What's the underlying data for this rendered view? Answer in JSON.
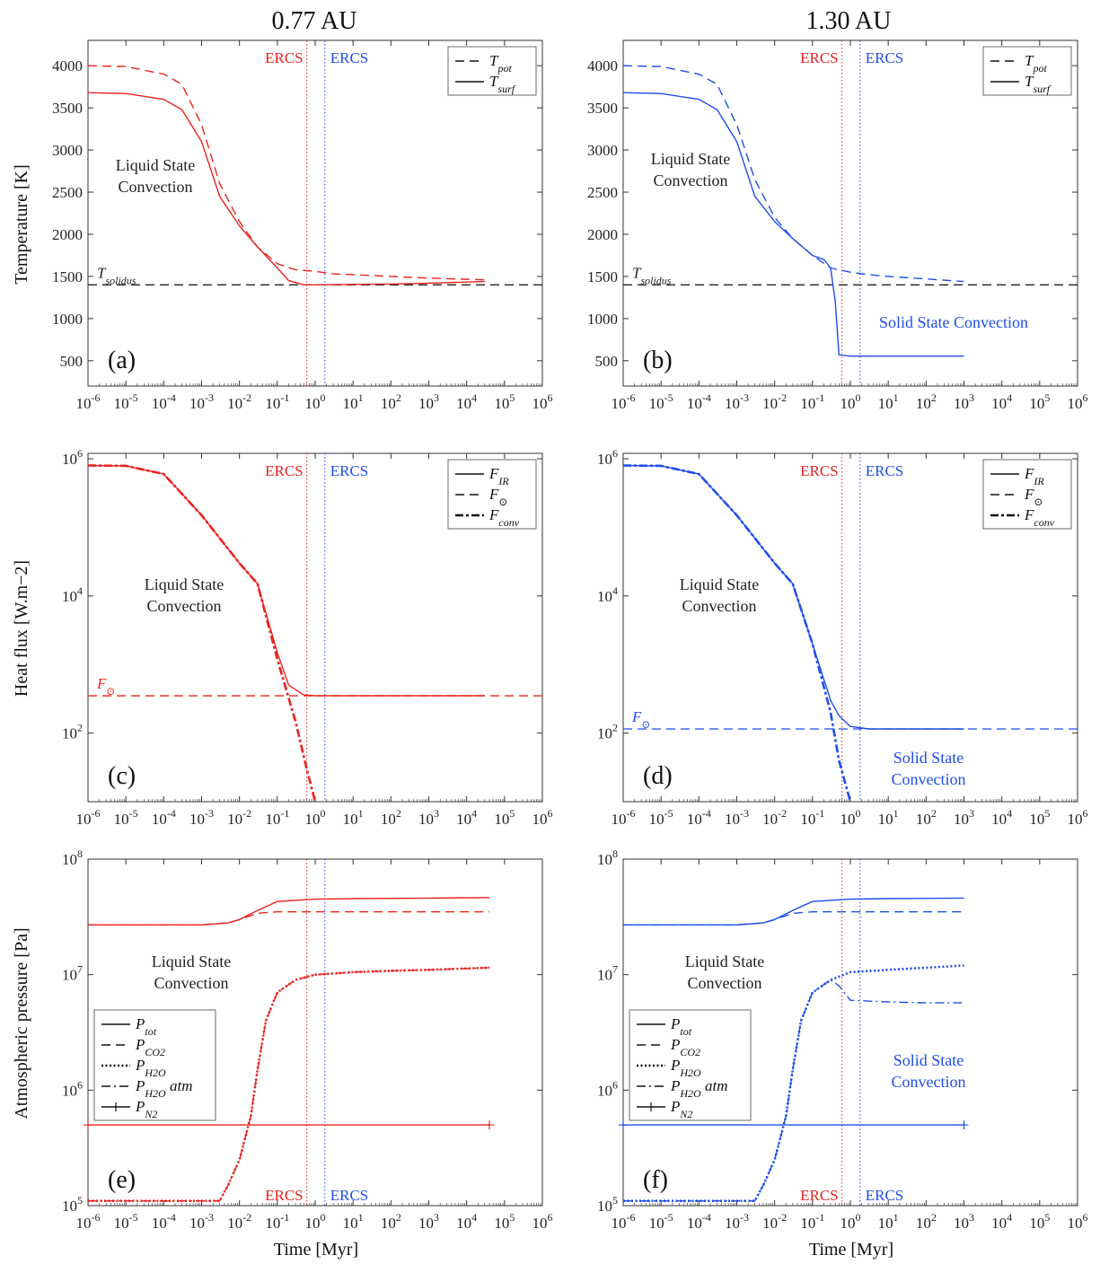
{
  "figure": {
    "col_titles": [
      "0.77 AU",
      "1.30 AU"
    ],
    "ylabels": {
      "temperature": "Temperature [K]",
      "heat_flux": "Heat flux [W.m−2]",
      "pressure": "Atmospheric pressure [Pa]"
    },
    "xlabel": "Time [Myr]",
    "colors": {
      "red": "#e8231f",
      "blue": "#1f4ee8",
      "black": "#222222"
    }
  },
  "chart_data": [
    {
      "id": "a",
      "panel_label": "(a)",
      "type": "line",
      "xscale": "log",
      "xlim": [
        1e-06,
        1000000.0
      ],
      "ylim": [
        200,
        4300
      ],
      "yticks": [
        500,
        1000,
        1500,
        2000,
        2500,
        3000,
        3500,
        4000
      ],
      "ytick_labels": [
        "500",
        "1000",
        "1500",
        "2000",
        "2500",
        "3000",
        "3500",
        "4000"
      ],
      "legend": {
        "placement": "top-right",
        "entries": [
          {
            "label": "T_pot",
            "style": "dashed"
          },
          {
            "label": "T_surf",
            "style": "solid"
          }
        ]
      },
      "vlines": [
        {
          "x": 0.6,
          "label": "ERCS",
          "color": "red"
        },
        {
          "x": 1.8,
          "label": "ERCS",
          "color": "blue"
        }
      ],
      "hlines": [
        {
          "y": 1400,
          "label": "T_solidus",
          "color": "black",
          "style": "dashed"
        }
      ],
      "annotations": [
        {
          "text": "Liquid State\nConvection",
          "color": "black"
        }
      ],
      "series": [
        {
          "name": "T_pot",
          "style": "dashed",
          "color": "red",
          "x": [
            1e-06,
            1e-05,
            0.0001,
            0.0003,
            0.001,
            0.003,
            0.01,
            0.03,
            0.1,
            0.3,
            1,
            3,
            10,
            100,
            1000,
            30000.0
          ],
          "y": [
            4000,
            3990,
            3900,
            3780,
            3300,
            2600,
            2150,
            1850,
            1650,
            1580,
            1560,
            1530,
            1520,
            1500,
            1480,
            1460
          ]
        },
        {
          "name": "T_surf",
          "style": "solid",
          "color": "red",
          "x": [
            1e-06,
            1e-05,
            0.0001,
            0.0003,
            0.001,
            0.003,
            0.01,
            0.03,
            0.1,
            0.2,
            0.5,
            1,
            10,
            100,
            1000,
            30000.0
          ],
          "y": [
            3680,
            3670,
            3600,
            3480,
            3100,
            2450,
            2100,
            1850,
            1600,
            1450,
            1400,
            1400,
            1405,
            1410,
            1420,
            1440
          ]
        }
      ]
    },
    {
      "id": "b",
      "panel_label": "(b)",
      "type": "line",
      "xscale": "log",
      "xlim": [
        1e-06,
        1000000.0
      ],
      "ylim": [
        200,
        4300
      ],
      "yticks": [
        500,
        1000,
        1500,
        2000,
        2500,
        3000,
        3500,
        4000
      ],
      "ytick_labels": [
        "500",
        "1000",
        "1500",
        "2000",
        "2500",
        "3000",
        "3500",
        "4000"
      ],
      "legend": {
        "placement": "top-right",
        "entries": [
          {
            "label": "T_pot",
            "style": "dashed"
          },
          {
            "label": "T_surf",
            "style": "solid"
          }
        ]
      },
      "vlines": [
        {
          "x": 0.6,
          "label": "ERCS",
          "color": "red"
        },
        {
          "x": 1.8,
          "label": "ERCS",
          "color": "blue"
        }
      ],
      "hlines": [
        {
          "y": 1400,
          "label": "T_solidus",
          "color": "black",
          "style": "dashed"
        }
      ],
      "annotations": [
        {
          "text": "Liquid State\nConvection",
          "color": "black"
        },
        {
          "text": "Solid State Convection",
          "color": "blue"
        }
      ],
      "series": [
        {
          "name": "T_pot",
          "style": "dashed",
          "color": "blue",
          "x": [
            1e-06,
            1e-05,
            0.0001,
            0.0003,
            0.001,
            0.003,
            0.01,
            0.03,
            0.1,
            0.3,
            1,
            3,
            10,
            100,
            1000
          ],
          "y": [
            4000,
            3990,
            3900,
            3780,
            3300,
            2650,
            2200,
            1950,
            1750,
            1600,
            1550,
            1520,
            1500,
            1470,
            1440
          ]
        },
        {
          "name": "T_surf",
          "style": "solid",
          "color": "blue",
          "x": [
            1e-06,
            1e-05,
            0.0001,
            0.0003,
            0.001,
            0.003,
            0.01,
            0.03,
            0.1,
            0.2,
            0.3,
            0.4,
            0.5,
            1,
            10,
            100,
            1000
          ],
          "y": [
            3680,
            3670,
            3600,
            3480,
            3100,
            2450,
            2150,
            1950,
            1750,
            1700,
            1600,
            1200,
            570,
            555,
            555,
            555,
            555
          ]
        }
      ]
    },
    {
      "id": "c",
      "panel_label": "(c)",
      "type": "line",
      "xscale": "log",
      "yscale": "log",
      "xlim": [
        1e-06,
        1000000.0
      ],
      "ylim": [
        10,
        1200000.0
      ],
      "yticks": [
        100,
        10000,
        1000000
      ],
      "ytick_labels": [
        "10^2",
        "10^4",
        "10^6"
      ],
      "legend": {
        "placement": "top-right",
        "entries": [
          {
            "label": "F_IR",
            "style": "solid"
          },
          {
            "label": "F_⊙",
            "style": "dashed"
          },
          {
            "label": "F_conv",
            "style": "dashdot-thick"
          }
        ]
      },
      "vlines": [
        {
          "x": 0.6,
          "label": "ERCS",
          "color": "red"
        },
        {
          "x": 1.8,
          "label": "ERCS",
          "color": "blue"
        }
      ],
      "hlines": [
        {
          "y": 350,
          "label": "F_⊙",
          "color": "red",
          "style": "dashed"
        }
      ],
      "annotations": [
        {
          "text": "Liquid State\nConvection",
          "color": "black"
        }
      ],
      "series": [
        {
          "name": "F_IR",
          "style": "solid",
          "color": "red",
          "x": [
            1e-06,
            1e-05,
            0.0001,
            0.001,
            0.01,
            0.03,
            0.1,
            0.2,
            0.5,
            1,
            10,
            1000,
            30000.0
          ],
          "y": [
            800000,
            790000,
            600000,
            150000,
            30000,
            15000,
            1500,
            500,
            360,
            350,
            350,
            350,
            350
          ]
        },
        {
          "name": "F_conv",
          "style": "dashdot-thick",
          "color": "red",
          "x": [
            1e-06,
            1e-05,
            0.0001,
            0.001,
            0.01,
            0.03,
            0.1,
            0.3,
            0.6,
            1
          ],
          "y": [
            800000,
            790000,
            600000,
            150000,
            30000,
            15000,
            1200,
            150,
            30,
            10
          ]
        }
      ]
    },
    {
      "id": "d",
      "panel_label": "(d)",
      "type": "line",
      "xscale": "log",
      "yscale": "log",
      "xlim": [
        1e-06,
        1000000.0
      ],
      "ylim": [
        10,
        1200000.0
      ],
      "yticks": [
        100,
        10000,
        1000000
      ],
      "ytick_labels": [
        "10^2",
        "10^4",
        "10^6"
      ],
      "legend": {
        "placement": "top-right",
        "entries": [
          {
            "label": "F_IR",
            "style": "solid"
          },
          {
            "label": "F_⊙",
            "style": "dashed"
          },
          {
            "label": "F_conv",
            "style": "dashdot-thick"
          }
        ]
      },
      "vlines": [
        {
          "x": 0.6,
          "label": "ERCS",
          "color": "red"
        },
        {
          "x": 1.8,
          "label": "ERCS",
          "color": "blue"
        }
      ],
      "hlines": [
        {
          "y": 115,
          "label": "F_⊙",
          "color": "blue",
          "style": "dashed"
        }
      ],
      "annotations": [
        {
          "text": "Liquid State\nConvection",
          "color": "black"
        },
        {
          "text": "Solid State\nConvection",
          "color": "blue"
        }
      ],
      "series": [
        {
          "name": "F_IR",
          "style": "solid",
          "color": "blue",
          "x": [
            1e-06,
            1e-05,
            0.0001,
            0.001,
            0.01,
            0.03,
            0.1,
            0.3,
            0.5,
            1,
            3,
            10,
            1000
          ],
          "y": [
            800000,
            790000,
            600000,
            150000,
            30000,
            15000,
            2000,
            300,
            180,
            125,
            115,
            115,
            115
          ]
        },
        {
          "name": "F_conv",
          "style": "dashdot-thick",
          "color": "blue",
          "x": [
            1e-06,
            1e-05,
            0.0001,
            0.001,
            0.01,
            0.03,
            0.1,
            0.3,
            0.5,
            1
          ],
          "y": [
            800000,
            790000,
            600000,
            150000,
            30000,
            15000,
            2000,
            200,
            40,
            10
          ]
        }
      ]
    },
    {
      "id": "e",
      "panel_label": "(e)",
      "type": "line",
      "xscale": "log",
      "yscale": "log",
      "xlim": [
        1e-06,
        1000000.0
      ],
      "ylim": [
        100000.0,
        100000000.0
      ],
      "yticks": [
        100000,
        1000000,
        10000000,
        100000000
      ],
      "ytick_labels": [
        "10^5",
        "10^6",
        "10^7",
        "10^8"
      ],
      "legend": {
        "placement": "bottom-left",
        "entries": [
          {
            "label": "P_tot",
            "style": "solid"
          },
          {
            "label": "P_CO2",
            "style": "dashed"
          },
          {
            "label": "P_H2O",
            "style": "dotted"
          },
          {
            "label": "P_H2O atm",
            "style": "dashdot"
          },
          {
            "label": "P_N2",
            "style": "plus"
          }
        ]
      },
      "vlines": [
        {
          "x": 0.6,
          "label": "ERCS",
          "color": "red"
        },
        {
          "x": 1.8,
          "label": "ERCS",
          "color": "blue"
        }
      ],
      "annotations": [
        {
          "text": "Liquid State\nConvection",
          "color": "black"
        }
      ],
      "series": [
        {
          "name": "P_tot",
          "style": "solid",
          "color": "red",
          "x": [
            1e-06,
            0.0001,
            0.001,
            0.005,
            0.01,
            0.03,
            0.1,
            1,
            10,
            1000,
            40000.0
          ],
          "y": [
            27000000,
            27000000,
            27000000,
            28000000,
            30000000,
            36000000,
            43000000,
            45000000,
            45500000,
            46000000,
            46500000
          ]
        },
        {
          "name": "P_CO2",
          "style": "dashed",
          "color": "red",
          "x": [
            1e-06,
            0.0001,
            0.001,
            0.005,
            0.01,
            0.03,
            0.1,
            1,
            40000.0
          ],
          "y": [
            27000000,
            27000000,
            27000000,
            28000000,
            30000000,
            34000000,
            35000000,
            35000000,
            35000000
          ]
        },
        {
          "name": "P_H2O",
          "style": "dotted",
          "color": "red",
          "x": [
            1e-06,
            0.0001,
            0.003,
            0.005,
            0.01,
            0.02,
            0.03,
            0.05,
            0.1,
            0.3,
            1,
            10,
            100,
            1000,
            40000.0
          ],
          "y": [
            110000,
            110000,
            110000,
            150000,
            250000,
            600000,
            1500000,
            4000000,
            7000000,
            9000000,
            10000000,
            10500000,
            10800000,
            11000000,
            11500000
          ]
        },
        {
          "name": "P_H2O atm",
          "style": "dashdot",
          "color": "red",
          "x": [
            1e-06,
            0.0001,
            0.003,
            0.005,
            0.01,
            0.02,
            0.03,
            0.05,
            0.1,
            0.3,
            1,
            10,
            100,
            1000,
            40000.0
          ],
          "y": [
            110000,
            110000,
            110000,
            150000,
            250000,
            600000,
            1500000,
            4000000,
            7000000,
            9000000,
            10000000,
            10500000,
            10800000,
            11000000,
            11500000
          ]
        },
        {
          "name": "P_N2",
          "style": "plus",
          "color": "red",
          "x": [
            1e-06,
            40000.0
          ],
          "y": [
            500000,
            500000
          ]
        }
      ]
    },
    {
      "id": "f",
      "panel_label": "(f)",
      "type": "line",
      "xscale": "log",
      "yscale": "log",
      "xlim": [
        1e-06,
        1000000.0
      ],
      "ylim": [
        100000.0,
        100000000.0
      ],
      "yticks": [
        100000,
        1000000,
        10000000,
        100000000
      ],
      "ytick_labels": [
        "10^5",
        "10^6",
        "10^7",
        "10^8"
      ],
      "legend": {
        "placement": "bottom-left",
        "entries": [
          {
            "label": "P_tot",
            "style": "solid"
          },
          {
            "label": "P_CO2",
            "style": "dashed"
          },
          {
            "label": "P_H2O",
            "style": "dotted"
          },
          {
            "label": "P_H2O atm",
            "style": "dashdot"
          },
          {
            "label": "P_N2",
            "style": "plus"
          }
        ]
      },
      "vlines": [
        {
          "x": 0.6,
          "label": "ERCS",
          "color": "red"
        },
        {
          "x": 1.8,
          "label": "ERCS",
          "color": "blue"
        }
      ],
      "annotations": [
        {
          "text": "Liquid State\nConvection",
          "color": "black"
        },
        {
          "text": "Solid State\nConvection",
          "color": "blue"
        }
      ],
      "series": [
        {
          "name": "P_tot",
          "style": "solid",
          "color": "blue",
          "x": [
            1e-06,
            0.0001,
            0.001,
            0.005,
            0.01,
            0.03,
            0.1,
            1,
            10,
            1000
          ],
          "y": [
            27000000,
            27000000,
            27000000,
            28000000,
            30000000,
            36000000,
            43000000,
            45000000,
            45500000,
            46000000
          ]
        },
        {
          "name": "P_CO2",
          "style": "dashed",
          "color": "blue",
          "x": [
            1e-06,
            0.0001,
            0.001,
            0.005,
            0.01,
            0.03,
            0.1,
            1,
            1000
          ],
          "y": [
            27000000,
            27000000,
            27000000,
            28000000,
            30000000,
            34000000,
            35000000,
            35000000,
            35000000
          ]
        },
        {
          "name": "P_H2O",
          "style": "dotted",
          "color": "blue",
          "x": [
            1e-06,
            0.0001,
            0.003,
            0.005,
            0.01,
            0.02,
            0.03,
            0.05,
            0.1,
            0.3,
            1,
            10,
            100,
            1000
          ],
          "y": [
            110000,
            110000,
            110000,
            150000,
            250000,
            600000,
            1500000,
            4000000,
            7000000,
            9000000,
            10500000,
            11000000,
            11500000,
            12000000
          ]
        },
        {
          "name": "P_H2O atm",
          "style": "dashdot",
          "color": "blue",
          "x": [
            1e-06,
            0.0001,
            0.003,
            0.005,
            0.01,
            0.02,
            0.03,
            0.05,
            0.1,
            0.3,
            0.5,
            1,
            10,
            100,
            1000
          ],
          "y": [
            110000,
            110000,
            110000,
            150000,
            250000,
            600000,
            1500000,
            4000000,
            7000000,
            9000000,
            8000000,
            6000000,
            5800000,
            5700000,
            5700000
          ]
        },
        {
          "name": "P_N2",
          "style": "plus",
          "color": "blue",
          "x": [
            1e-06,
            1000
          ],
          "y": [
            500000,
            500000
          ]
        }
      ]
    }
  ]
}
